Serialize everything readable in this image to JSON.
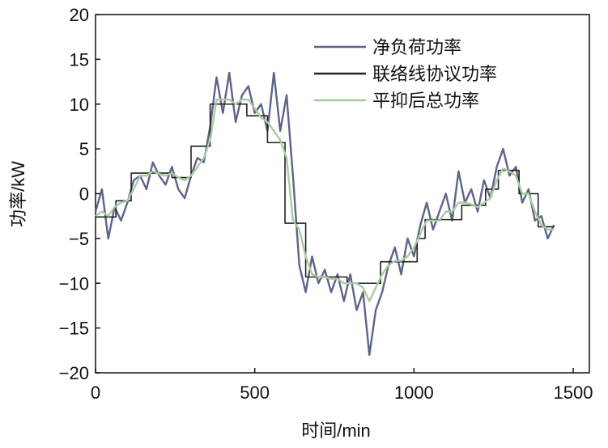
{
  "chart_data": {
    "type": "line",
    "title": "",
    "xlabel": "时间/min",
    "ylabel": "功率/kW",
    "xlim": [
      0,
      1500
    ],
    "ylim": [
      -20,
      20
    ],
    "xticks": [
      "0",
      "500",
      "1000",
      "1500"
    ],
    "xtick_values": [
      0,
      500,
      1000,
      1500
    ],
    "yticks": [
      "20",
      "15",
      "10",
      "5",
      "0",
      "−5",
      "−10",
      "−15",
      "−20"
    ],
    "ytick_values": [
      20,
      15,
      10,
      5,
      0,
      -5,
      -10,
      -15,
      -20
    ],
    "grid": false,
    "legend_position": "top-right",
    "x_start": 0,
    "x_step": 20,
    "series": [
      {
        "name": "净负荷功率",
        "color": "#5f6388",
        "values": [
          -2,
          0.5,
          -5,
          -1.5,
          -3,
          -1,
          1.5,
          2,
          0.5,
          3.5,
          2,
          1,
          3,
          0.5,
          -0.5,
          2,
          4,
          3.5,
          7.5,
          13,
          9,
          13.5,
          8,
          11,
          12,
          9,
          10,
          7,
          13.5,
          7,
          11,
          2,
          -8,
          -11,
          -7,
          -10,
          -8.5,
          -11,
          -9,
          -12,
          -9,
          -13,
          -11,
          -18,
          -13,
          -11,
          -8,
          -6,
          -9,
          -5,
          -7,
          -3.5,
          -1,
          -4,
          -2,
          0,
          -3,
          2.5,
          -1,
          0.5,
          -2,
          1.5,
          -0.5,
          3,
          5,
          2,
          3,
          -1,
          0.5,
          -3,
          -2.5,
          -5,
          -3.5
        ]
      },
      {
        "name": "联络线协议功率",
        "color": "#222222",
        "type": "step",
        "segments": [
          [
            0,
            64,
            -2.6
          ],
          [
            64,
            112,
            -0.8
          ],
          [
            112,
            240,
            2.3
          ],
          [
            240,
            300,
            1.8
          ],
          [
            300,
            360,
            5.3
          ],
          [
            360,
            475,
            10
          ],
          [
            475,
            540,
            8.7
          ],
          [
            540,
            595,
            5.7
          ],
          [
            595,
            660,
            -3.3
          ],
          [
            660,
            790,
            -9.3
          ],
          [
            790,
            895,
            -10
          ],
          [
            895,
            1010,
            -7.6
          ],
          [
            1010,
            1035,
            -5
          ],
          [
            1035,
            1150,
            -2.9
          ],
          [
            1150,
            1225,
            -1.3
          ],
          [
            1225,
            1265,
            0.5
          ],
          [
            1265,
            1330,
            2.6
          ],
          [
            1330,
            1390,
            0
          ],
          [
            1390,
            1440,
            -3.7
          ]
        ]
      },
      {
        "name": "平抑后总功率",
        "color": "#a8cca0",
        "values": [
          -2.5,
          -2,
          -2.5,
          -1.5,
          -1,
          -0.8,
          0.5,
          2,
          2,
          2.5,
          2.2,
          2,
          2.3,
          1.8,
          1.5,
          2,
          3,
          4,
          6,
          10.5,
          10.5,
          10.5,
          10,
          10.5,
          10.5,
          9.5,
          8.5,
          8,
          7,
          6,
          4,
          -3,
          -4,
          -7,
          -9,
          -9.3,
          -9.3,
          -9.5,
          -9.5,
          -10,
          -10,
          -10,
          -10.5,
          -12,
          -10.5,
          -9,
          -8,
          -7.5,
          -7.5,
          -7,
          -6,
          -4.5,
          -3,
          -3,
          -3,
          -2,
          -2,
          -1,
          -1,
          -1.2,
          -1.5,
          -1,
          -0.5,
          1.5,
          2.8,
          2.5,
          2,
          0,
          0,
          -2,
          -3.5,
          -4,
          -4
        ]
      }
    ]
  }
}
